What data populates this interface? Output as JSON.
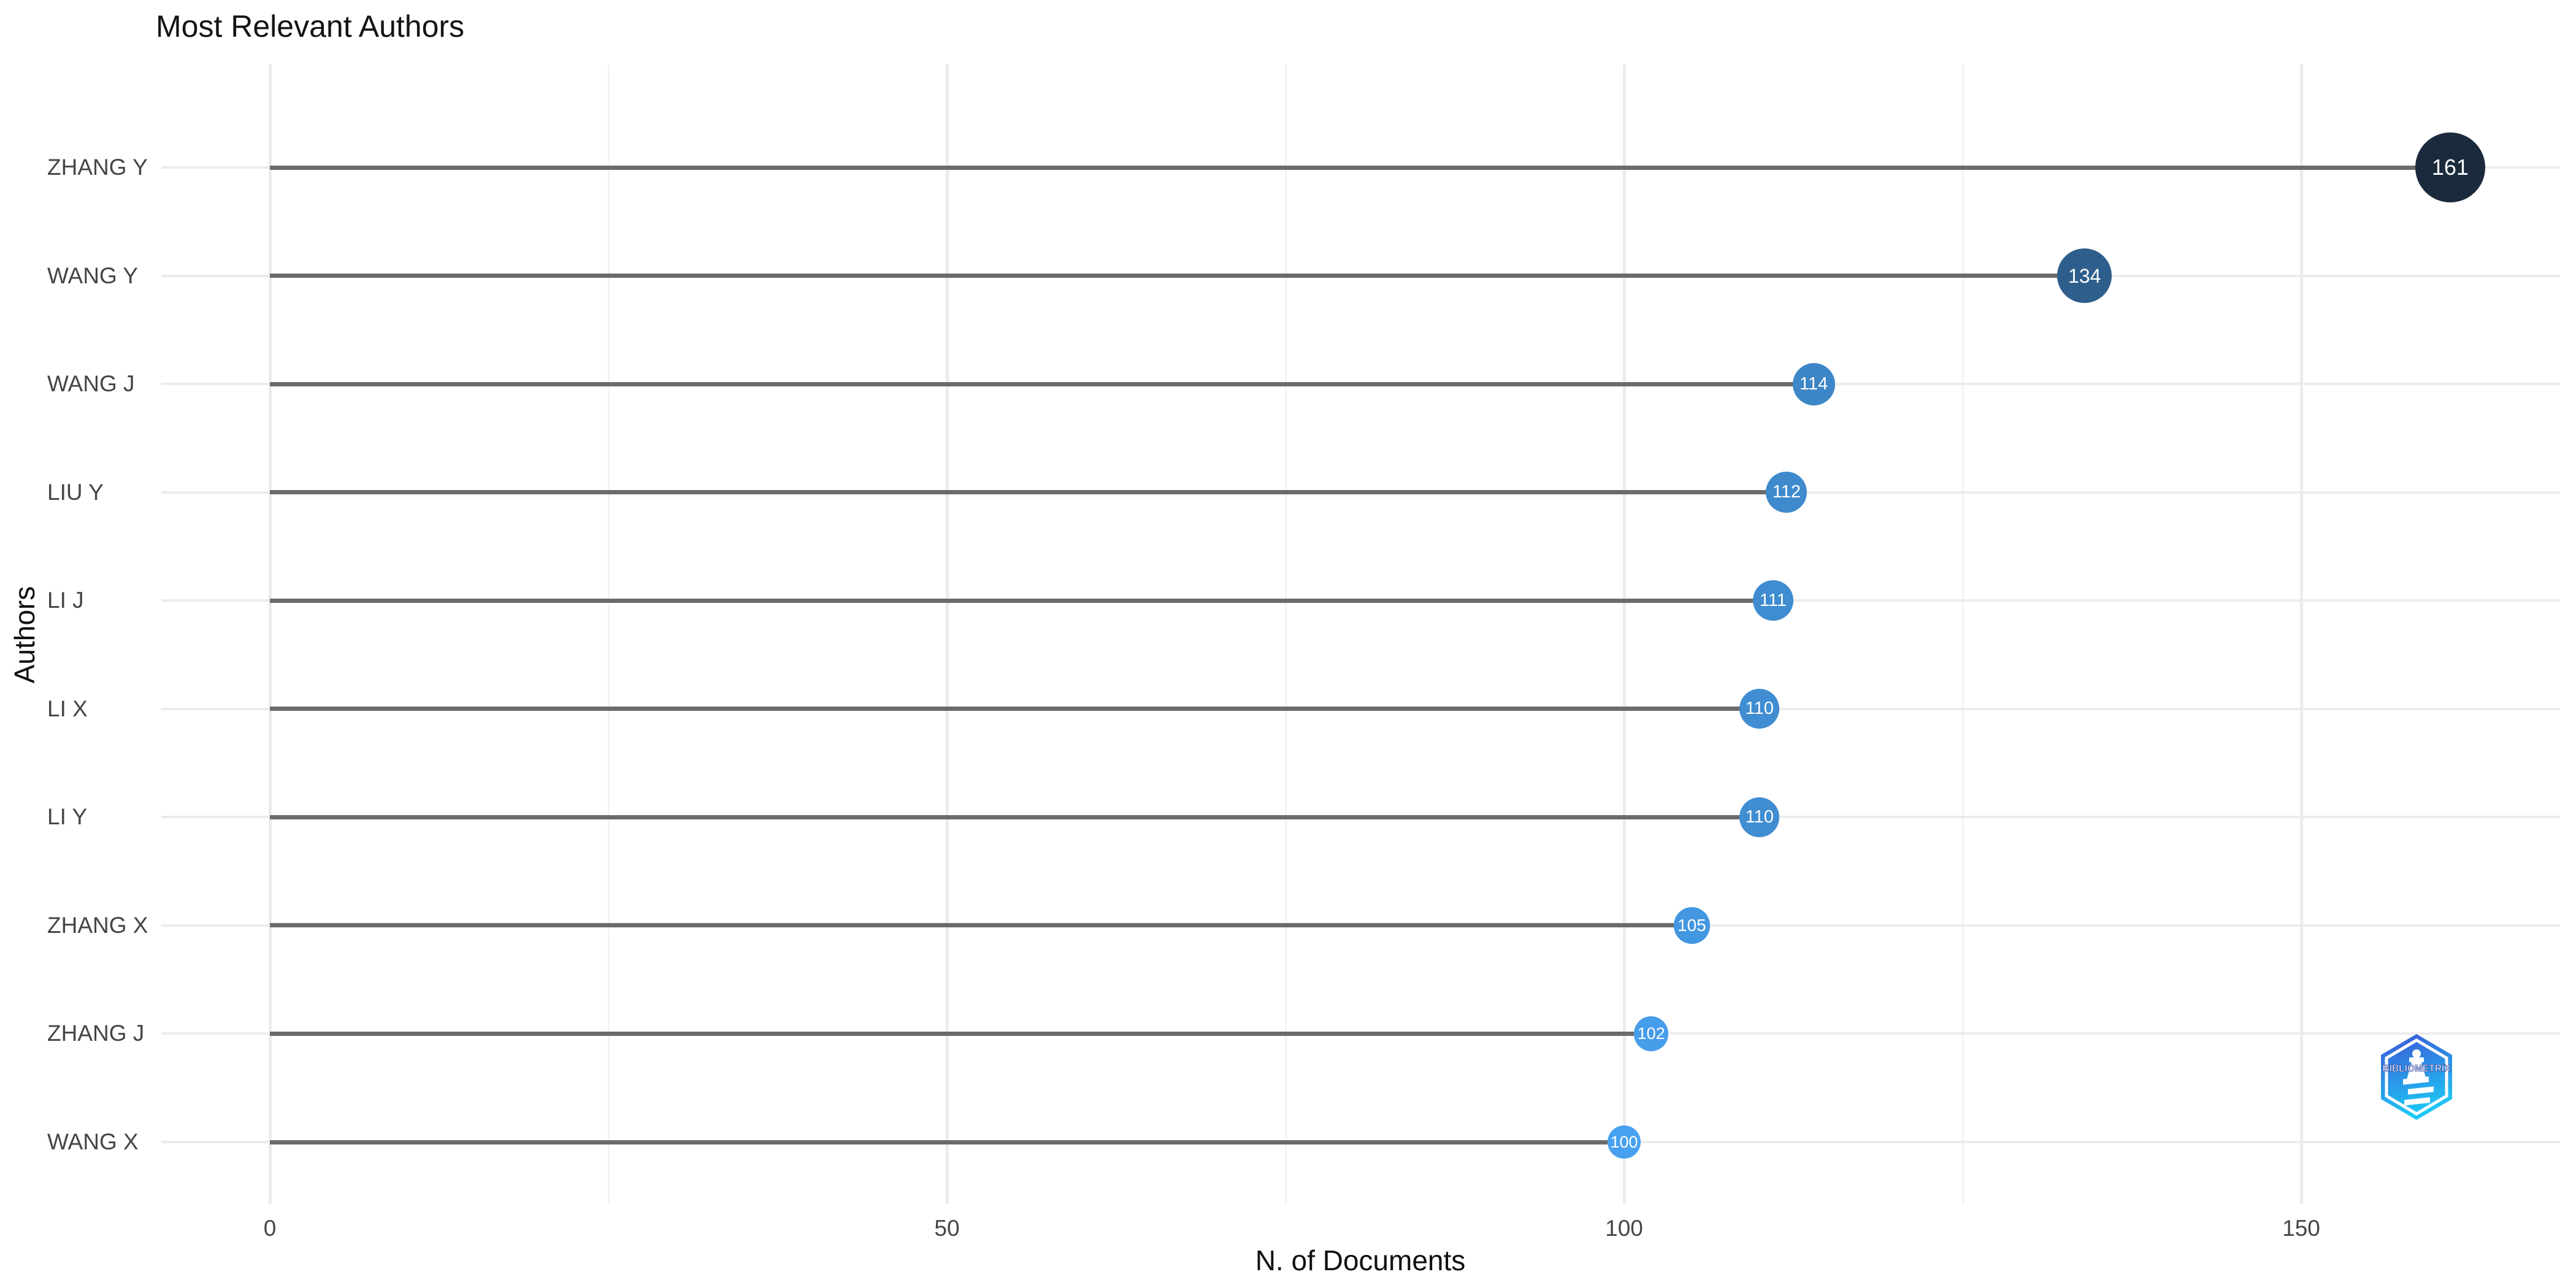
{
  "title": "Most Relevant Authors",
  "chart_data": {
    "type": "bar",
    "subtype": "horizontal-lollipop",
    "title": "Most Relevant Authors",
    "xlabel": "N. of Documents",
    "ylabel": "Authors",
    "categories": [
      "ZHANG Y",
      "WANG Y",
      "WANG J",
      "LIU Y",
      "LI J",
      "LI X",
      "LI Y",
      "ZHANG X",
      "ZHANG J",
      "WANG X"
    ],
    "values": [
      161,
      134,
      114,
      112,
      111,
      110,
      110,
      105,
      102,
      100
    ],
    "x_ticks": [
      0,
      50,
      100,
      150
    ],
    "x_minor_ticks": [
      25,
      75,
      125
    ],
    "xlim": [
      -8,
      169
    ],
    "grid": "on",
    "legend": "none",
    "color_scale": {
      "low_value": 100,
      "high_value": 161,
      "low_color": "#47A1F0",
      "high_color": "#1B2A3C"
    },
    "stem_color": "#6b6b6b",
    "gridline_color": "#ececec",
    "value_label_color": "#ffffff"
  },
  "logo": {
    "label": "BIBLIOMETRIX",
    "gradient_top": "#3B55D6",
    "gradient_bottom": "#1EC8F5",
    "accent": "#ffffff"
  }
}
